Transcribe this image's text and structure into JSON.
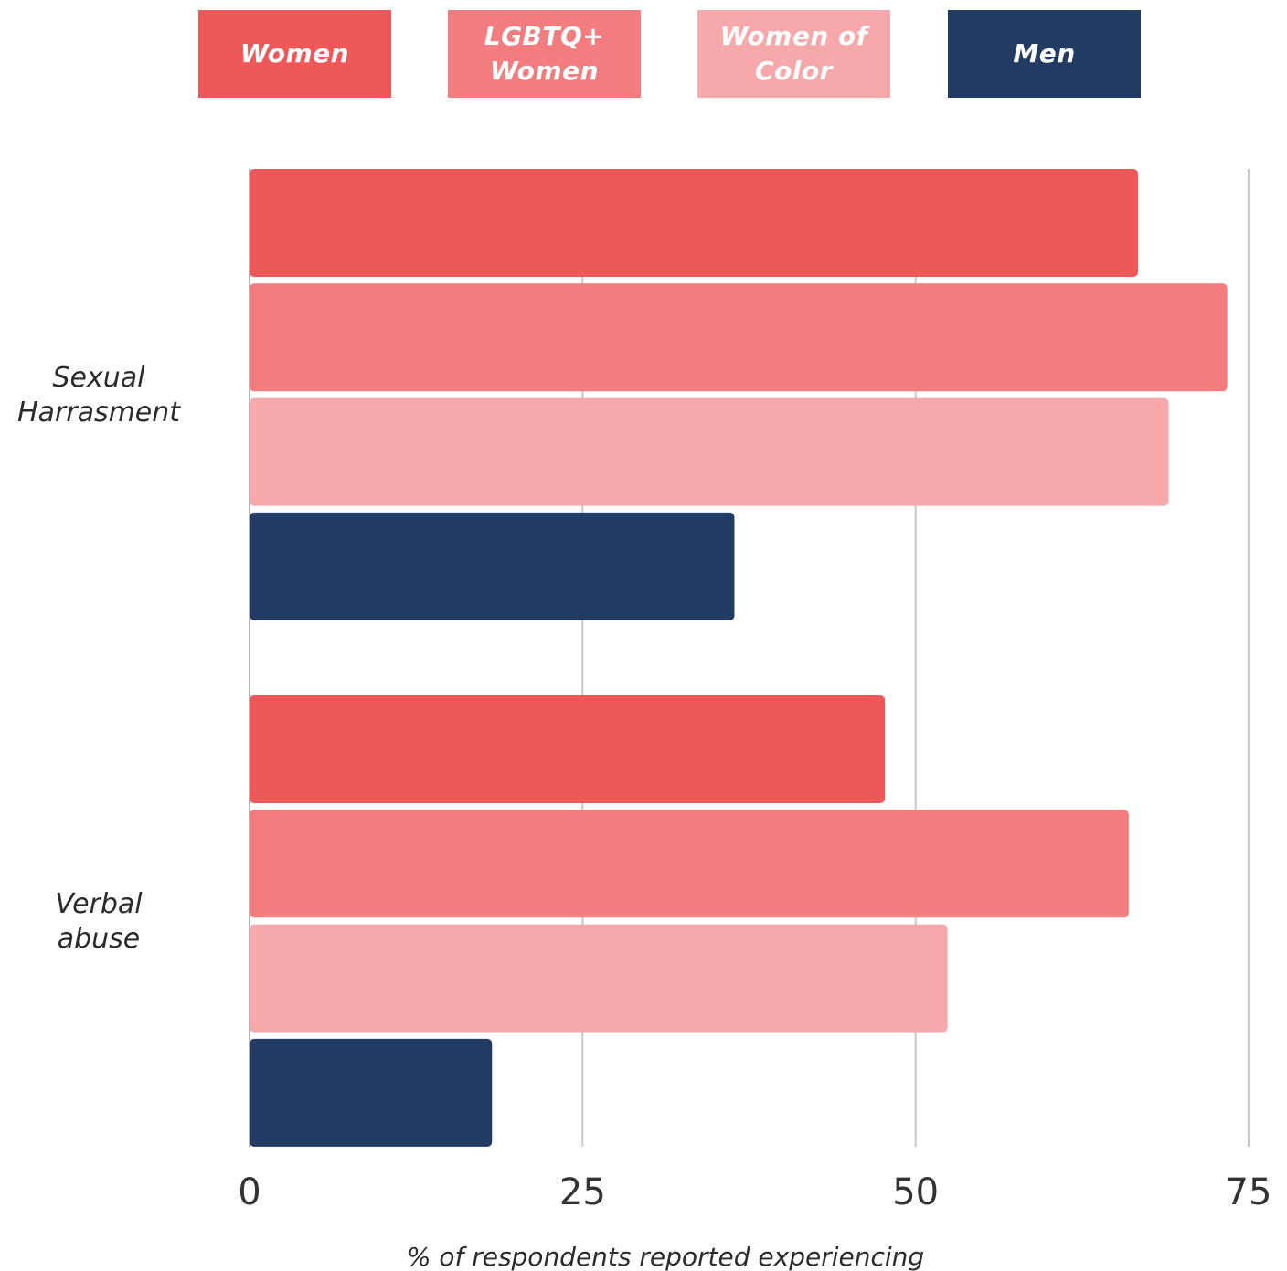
{
  "chart_data": {
    "type": "bar",
    "orientation": "horizontal",
    "categories": [
      "Sexual\nHarrasment",
      "Verbal\nabuse"
    ],
    "series": [
      {
        "name": "Women",
        "color": "#EE5859",
        "values": [
          66.7,
          47.7
        ]
      },
      {
        "name": "LGBTQ+\nWomen",
        "color": "#F37C7E",
        "values": [
          73.4,
          66.0
        ]
      },
      {
        "name": "Women of\nColor",
        "color": "#F6A8AA",
        "values": [
          69.0,
          52.4
        ]
      },
      {
        "name": "Men",
        "color": "#213B62",
        "values": [
          36.4,
          18.2
        ]
      }
    ],
    "xlim": [
      0,
      75
    ],
    "xticks": [
      0,
      25,
      50,
      75
    ],
    "xlabel": "% of respondents reported experiencing",
    "grid": "vertical",
    "legend_position": "top"
  }
}
